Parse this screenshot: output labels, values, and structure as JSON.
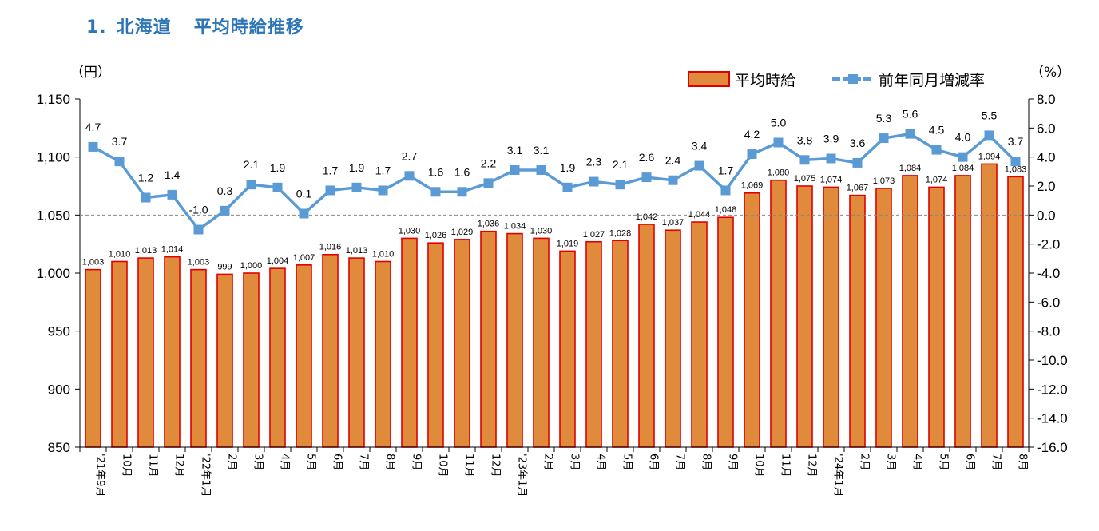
{
  "title": {
    "number": "1.",
    "region": "北海道",
    "subject": "平均時給推移"
  },
  "chart_data": {
    "type": "bar+line",
    "categories": [
      "'21年9月",
      "10月",
      "11月",
      "12月",
      "'22年1月",
      "2月",
      "3月",
      "4月",
      "5月",
      "6月",
      "7月",
      "8月",
      "9月",
      "10月",
      "11月",
      "12月",
      "'23年1月",
      "2月",
      "3月",
      "4月",
      "5月",
      "6月",
      "7月",
      "8月",
      "9月",
      "10月",
      "11月",
      "12月",
      "'24年1月",
      "2月",
      "3月",
      "4月",
      "5月",
      "6月",
      "7月",
      "8月"
    ],
    "series": [
      {
        "name": "平均時給",
        "type": "bar",
        "axis": "left",
        "color": "#E08A3C",
        "edge_color": "#E00000",
        "values": [
          1003,
          1010,
          1013,
          1014,
          1003,
          999,
          1000,
          1004,
          1007,
          1016,
          1013,
          1010,
          1030,
          1026,
          1029,
          1036,
          1034,
          1030,
          1019,
          1027,
          1028,
          1042,
          1037,
          1044,
          1048,
          1069,
          1080,
          1075,
          1074,
          1067,
          1073,
          1084,
          1074,
          1084,
          1094,
          1083
        ],
        "labels": [
          "1,003",
          "1,010",
          "1,013",
          "1,014",
          "1,003",
          "999",
          "1,000",
          "1,004",
          "1,007",
          "1,016",
          "1,013",
          "1,010",
          "1,030",
          "1,026",
          "1,029",
          "1,036",
          "1,034",
          "1,030",
          "1,019",
          "1,027",
          "1,028",
          "1,042",
          "1,037",
          "1,044",
          "1,048",
          "1,069",
          "1,080",
          "1,075",
          "1,074",
          "1,067",
          "1,073",
          "1,084",
          "1,074",
          "1,084",
          "1,094",
          "1,083"
        ]
      },
      {
        "name": "前年同月増減率",
        "type": "line",
        "axis": "right",
        "color": "#5B9BD5",
        "values": [
          4.7,
          3.7,
          1.2,
          1.4,
          -1.0,
          0.3,
          2.1,
          1.9,
          0.1,
          1.7,
          1.9,
          1.7,
          2.7,
          1.6,
          1.6,
          2.2,
          3.1,
          3.1,
          1.9,
          2.3,
          2.1,
          2.6,
          2.4,
          3.4,
          1.7,
          4.2,
          5.0,
          3.8,
          3.9,
          3.6,
          5.3,
          5.6,
          4.5,
          4.0,
          5.5,
          3.7
        ],
        "labels": [
          "4.7",
          "3.7",
          "1.2",
          "1.4",
          "-1.0",
          "0.3",
          "2.1",
          "1.9",
          "0.1",
          "1.7",
          "1.9",
          "1.7",
          "2.7",
          "1.6",
          "1.6",
          "2.2",
          "3.1",
          "3.1",
          "1.9",
          "2.3",
          "2.1",
          "2.6",
          "2.4",
          "3.4",
          "1.7",
          "4.2",
          "5.0",
          "3.8",
          "3.9",
          "3.6",
          "5.3",
          "5.6",
          "4.5",
          "4.0",
          "5.5",
          "3.7"
        ]
      }
    ],
    "left_axis": {
      "unit": "（円）",
      "ylim": [
        850,
        1150
      ],
      "ticks": [
        1150,
        1100,
        1050,
        1000,
        950,
        900,
        850
      ],
      "tick_labels": [
        "1,150",
        "1,100",
        "1,050",
        "1,000",
        "950",
        "900",
        "850"
      ]
    },
    "right_axis": {
      "unit": "（%）",
      "ylim": [
        -16,
        8
      ],
      "ticks": [
        8,
        6,
        4,
        2,
        0,
        -2,
        -4,
        -6,
        -8,
        -10,
        -12,
        -14,
        -16
      ],
      "tick_labels": [
        "8.0",
        "6.0",
        "4.0",
        "2.0",
        "0.0",
        "-2.0",
        "-4.0",
        "-6.0",
        "-8.0",
        "-10.0",
        "-12.0",
        "-14.0",
        "-16.0"
      ]
    },
    "zero_reference_line": "dashed",
    "legend": {
      "position": "top-right",
      "items": [
        "平均時給",
        "前年同月増減率"
      ]
    }
  }
}
